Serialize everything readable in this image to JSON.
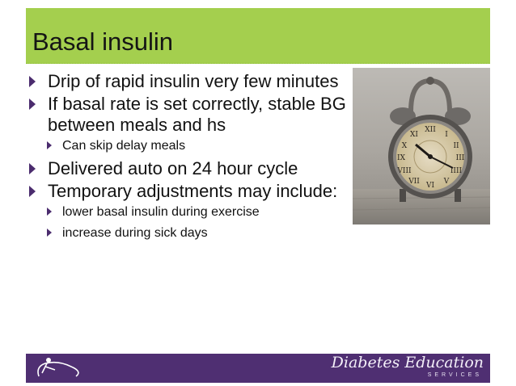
{
  "slide": {
    "title": "Basal insulin",
    "bullets": [
      {
        "text": "Drip of rapid insulin very few minutes",
        "sub": []
      },
      {
        "text": "If basal rate is set correctly, stable BG between meals and hs",
        "sub": [
          "Can skip delay meals"
        ]
      },
      {
        "text": "Delivered auto on 24 hour cycle",
        "sub": []
      },
      {
        "text": "Temporary adjustments may include:",
        "sub": [
          "lower basal insulin during exercise",
          "increase during sick days"
        ]
      }
    ],
    "image_icon": "alarm-clock-icon"
  },
  "footer": {
    "brand_main": "Diabetes Education",
    "brand_sub": "SERVICES",
    "logo_icon": "figure-logo-icon"
  },
  "colors": {
    "title_bar": "#a4cf4e",
    "footer_bar": "#4f2f72",
    "bullet_arrow": "#4b2c6e"
  }
}
